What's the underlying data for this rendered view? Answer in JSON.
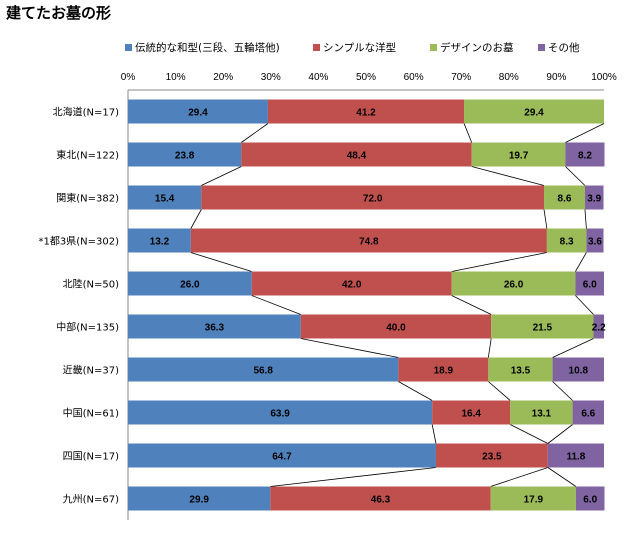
{
  "title": "建てたお墓の形",
  "chart_data": {
    "type": "bar",
    "orientation": "horizontal",
    "stacked": "percent",
    "categories": [
      "北海道(N=17)",
      "東北(N=122)",
      "関東(N=382)",
      "*1都3県(N=302)",
      "北陸(N=50)",
      "中部(N=135)",
      "近畿(N=37)",
      "中国(N=61)",
      "四国(N=17)",
      "九州(N=67)"
    ],
    "series": [
      {
        "name": "伝統的な和型(三段、五輪塔他)",
        "color": "#4F81BD",
        "values": [
          29.4,
          23.8,
          15.4,
          13.2,
          26.0,
          36.3,
          56.8,
          63.9,
          64.7,
          29.9
        ]
      },
      {
        "name": "シンプルな洋型",
        "color": "#C0504D",
        "values": [
          41.2,
          48.4,
          72.0,
          74.8,
          42.0,
          40.0,
          18.9,
          16.4,
          23.5,
          46.3
        ]
      },
      {
        "name": "デザインのお墓",
        "color": "#9BBB59",
        "values": [
          29.4,
          19.7,
          8.6,
          8.3,
          26.0,
          21.5,
          13.5,
          13.1,
          0,
          17.9
        ]
      },
      {
        "name": "その他",
        "color": "#8064A2",
        "values": [
          0,
          8.2,
          3.9,
          3.6,
          6.0,
          2.2,
          10.8,
          6.6,
          11.8,
          6.0
        ]
      }
    ],
    "xlim": [
      0,
      100
    ],
    "x_ticks": [
      "0%",
      "10%",
      "20%",
      "30%",
      "40%",
      "50%",
      "60%",
      "70%",
      "80%",
      "90%",
      "100%"
    ],
    "legend_position": "top",
    "series_lines": true,
    "grid": false
  }
}
